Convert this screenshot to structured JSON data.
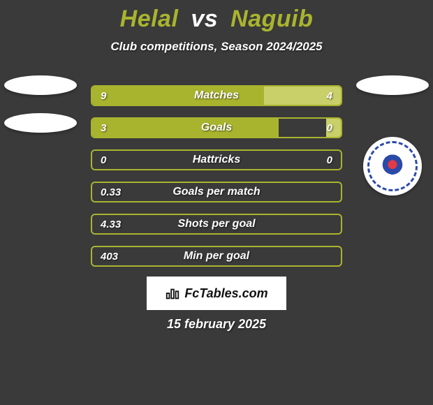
{
  "background_color": "#3a3a3a",
  "text_color_primary": "#ffffff",
  "title": {
    "player1": "Helal",
    "vs": "vs",
    "player2": "Naguib",
    "player1_color": "#a9b42e",
    "vs_color": "#ffffff",
    "player2_color": "#a9b42e",
    "fontsize": 34
  },
  "subtitle": {
    "text": "Club competitions, Season 2024/2025",
    "color": "#ffffff",
    "fontsize": 17
  },
  "bar_style": {
    "track_color": "#3a3a3a",
    "track_border": "#a9b42e",
    "left_fill": "#a9b42e",
    "right_fill": "#c9d06a",
    "label_color": "#ffffff",
    "value_color": "#ffffff",
    "height": 30,
    "gap": 16,
    "border_radius": 6,
    "fontsize_label": 16,
    "fontsize_value": 15
  },
  "bars": [
    {
      "label": "Matches",
      "left": "9",
      "right": "4",
      "left_pct": 69,
      "right_pct": 31
    },
    {
      "label": "Goals",
      "left": "3",
      "right": "0",
      "left_pct": 75,
      "right_pct": 6
    },
    {
      "label": "Hattricks",
      "left": "0",
      "right": "0",
      "left_pct": 0,
      "right_pct": 0
    },
    {
      "label": "Goals per match",
      "left": "0.33",
      "right": "",
      "left_pct": 0,
      "right_pct": 0
    },
    {
      "label": "Shots per goal",
      "left": "4.33",
      "right": "",
      "left_pct": 0,
      "right_pct": 0
    },
    {
      "label": "Min per goal",
      "left": "403",
      "right": "",
      "left_pct": 0,
      "right_pct": 0
    }
  ],
  "branding": {
    "text": "FcTables.com",
    "bg": "#ffffff",
    "text_color": "#111111",
    "fontsize": 18
  },
  "date": {
    "text": "15 february 2025",
    "color": "#ffffff",
    "fontsize": 18
  },
  "crest_colors": {
    "outer": "#ffffff",
    "ring": "#2b4aa8",
    "accent": "#e63946"
  }
}
